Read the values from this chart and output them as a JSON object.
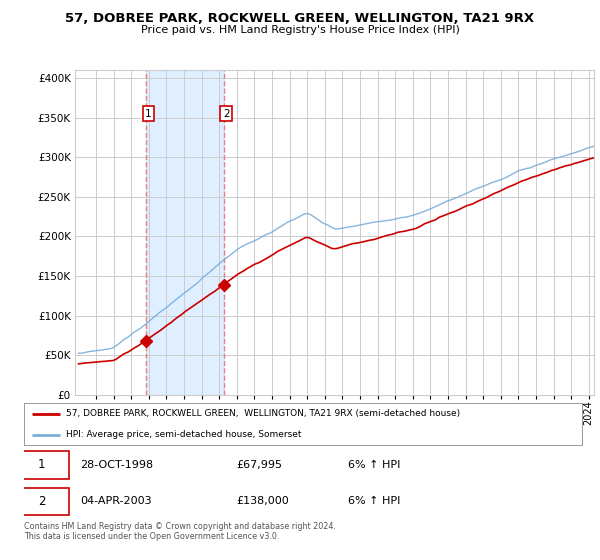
{
  "title_line1": "57, DOBREE PARK, ROCKWELL GREEN, WELLINGTON, TA21 9RX",
  "title_line2": "Price paid vs. HM Land Registry's House Price Index (HPI)",
  "ytick_values": [
    0,
    50000,
    100000,
    150000,
    200000,
    250000,
    300000,
    350000,
    400000
  ],
  "ylim": [
    0,
    410000
  ],
  "sale1_date": "28-OCT-1998",
  "sale1_price": 67995,
  "sale1_hpi": "6% ↑ HPI",
  "sale1_year": 1998.83,
  "sale2_date": "04-APR-2003",
  "sale2_price": 138000,
  "sale2_hpi": "6% ↑ HPI",
  "sale2_year": 2003.25,
  "legend_line1": "57, DOBREE PARK, ROCKWELL GREEN,  WELLINGTON, TA21 9RX (semi-detached house)",
  "legend_line2": "HPI: Average price, semi-detached house, Somerset",
  "footnote": "Contains HM Land Registry data © Crown copyright and database right 2024.\nThis data is licensed under the Open Government Licence v3.0.",
  "property_color": "#cc0000",
  "hpi_color": "#7aaddb",
  "sale_marker_color": "#cc0000",
  "vline_color": "#e88080",
  "highlight_color": "#ddeeff",
  "grid_color": "#cccccc",
  "background_color": "#ffffff",
  "x_start_year": 1995,
  "x_end_year": 2024
}
